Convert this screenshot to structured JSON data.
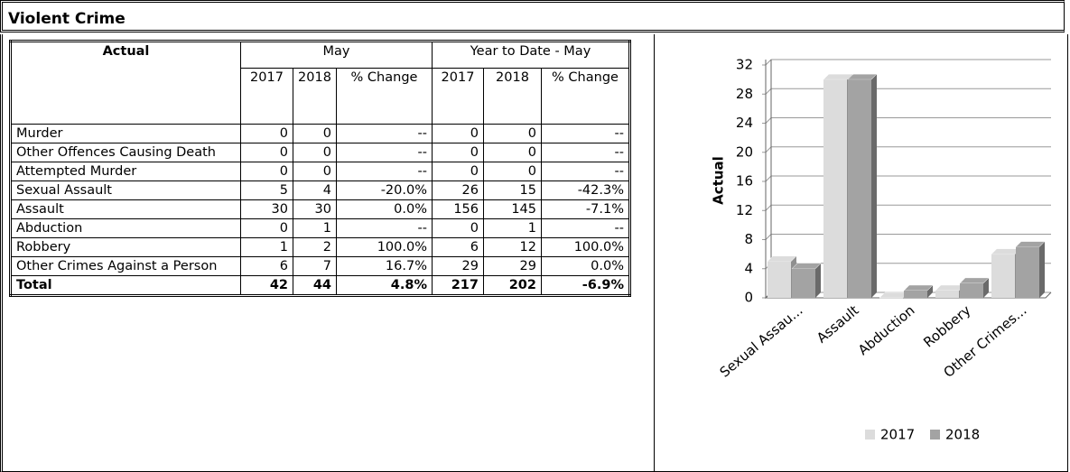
{
  "title": "Violent Crime",
  "table": {
    "header": [
      "Actual",
      "May",
      "Year to Date - May"
    ],
    "subheader": [
      "2017",
      "2018",
      "% Change",
      "2017",
      "2018",
      "% Change"
    ],
    "rows": [
      [
        "Murder",
        0,
        0,
        "--",
        0,
        0,
        "--"
      ],
      [
        "Other Offences Causing Death",
        0,
        0,
        "--",
        0,
        0,
        "--"
      ],
      [
        "Attempted Murder",
        0,
        0,
        "--",
        0,
        0,
        "--"
      ],
      [
        "Sexual Assault",
        5,
        4,
        "-20.0%",
        26,
        15,
        "-42.3%"
      ],
      [
        "Assault",
        30,
        30,
        "0.0%",
        156,
        145,
        "-7.1%"
      ],
      [
        "Abduction",
        0,
        1,
        "--",
        0,
        1,
        "--"
      ],
      [
        "Robbery",
        1,
        2,
        "100.0%",
        6,
        12,
        "100.0%"
      ],
      [
        "Other Crimes Against a Person",
        6,
        7,
        "16.7%",
        29,
        29,
        "0.0%"
      ]
    ],
    "total": [
      "Total",
      42,
      44,
      "4.8%",
      217,
      202,
      "-6.9%"
    ]
  },
  "chart_data": {
    "type": "bar",
    "y_label": "Actual",
    "categories": [
      "Sexual Assau...",
      "Assault",
      "Abduction",
      "Robbery",
      "Other Crimes..."
    ],
    "series": [
      {
        "name": "2017",
        "color": "#dcdcdc",
        "values": [
          5,
          30,
          0,
          1,
          6
        ]
      },
      {
        "name": "2018",
        "color": "#a3a3a3",
        "values": [
          4,
          30,
          1,
          2,
          7
        ]
      }
    ],
    "ylim": [
      0,
      32
    ],
    "yticks": [
      0,
      4,
      8,
      12,
      16,
      20,
      24,
      28,
      32
    ],
    "grid": true,
    "legend": "bottom"
  }
}
